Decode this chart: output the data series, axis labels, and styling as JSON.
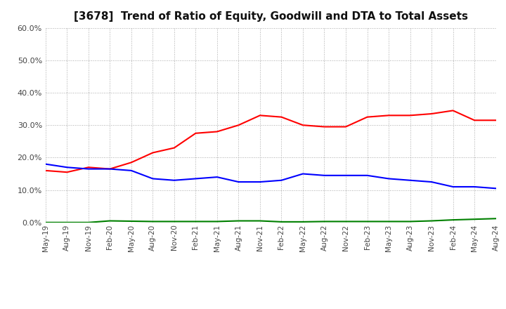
{
  "title": "[3678]  Trend of Ratio of Equity, Goodwill and DTA to Total Assets",
  "x_labels": [
    "May-19",
    "Aug-19",
    "Nov-19",
    "Feb-20",
    "May-20",
    "Aug-20",
    "Nov-20",
    "Feb-21",
    "May-21",
    "Aug-21",
    "Nov-21",
    "Feb-22",
    "May-22",
    "Aug-22",
    "Nov-22",
    "Feb-23",
    "May-23",
    "Aug-23",
    "Nov-23",
    "Feb-24",
    "May-24",
    "Aug-24"
  ],
  "equity": [
    16.0,
    15.5,
    17.0,
    16.5,
    18.5,
    21.5,
    23.0,
    27.5,
    28.0,
    30.0,
    33.0,
    32.5,
    30.0,
    29.5,
    29.5,
    32.5,
    33.0,
    33.0,
    33.5,
    34.5,
    31.5,
    31.5
  ],
  "goodwill": [
    18.0,
    17.0,
    16.5,
    16.5,
    16.0,
    13.5,
    13.0,
    13.5,
    14.0,
    12.5,
    12.5,
    13.0,
    15.0,
    14.5,
    14.5,
    14.5,
    13.5,
    13.0,
    12.5,
    11.0,
    11.0,
    10.5
  ],
  "dta": [
    0.0,
    0.0,
    0.0,
    0.5,
    0.4,
    0.3,
    0.3,
    0.3,
    0.3,
    0.5,
    0.5,
    0.2,
    0.2,
    0.3,
    0.3,
    0.3,
    0.3,
    0.3,
    0.5,
    0.8,
    1.0,
    1.2
  ],
  "equity_color": "#FF0000",
  "goodwill_color": "#0000FF",
  "dta_color": "#008000",
  "ylim": [
    0.0,
    60.0
  ],
  "yticks": [
    0.0,
    10.0,
    20.0,
    30.0,
    40.0,
    50.0,
    60.0
  ],
  "background_color": "#FFFFFF",
  "grid_color": "#AAAAAA"
}
